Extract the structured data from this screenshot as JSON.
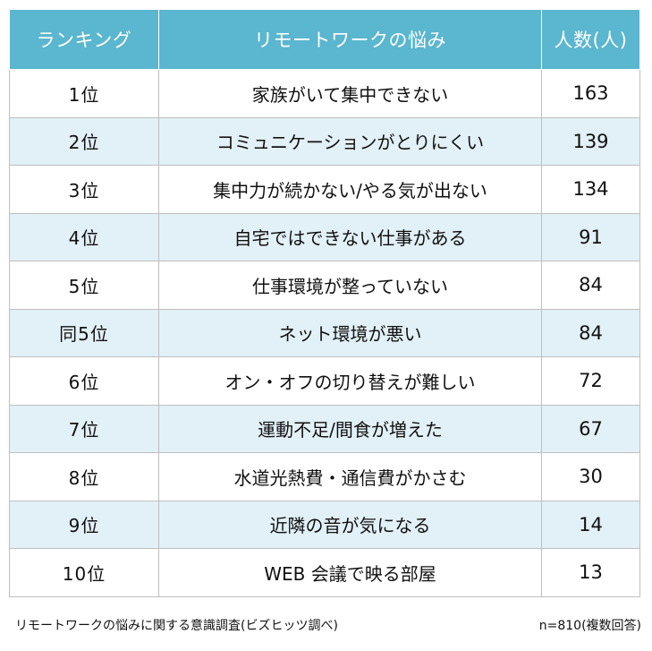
{
  "colors": {
    "header_bg": "#5bb6cf",
    "header_text": "#ffffff",
    "row_shade": "#e2f0f7",
    "border": "#bfbfbf"
  },
  "table": {
    "headers": {
      "rank": "ランキング",
      "concern": "リモートワークの悩み",
      "count": "人数(人)"
    },
    "rows": [
      {
        "rank": "1位",
        "concern": "家族がいて集中できない",
        "count": "163"
      },
      {
        "rank": "2位",
        "concern": "コミュニケーションがとりにくい",
        "count": "139"
      },
      {
        "rank": "3位",
        "concern": "集中力が続かない/やる気が出ない",
        "count": "134"
      },
      {
        "rank": "4位",
        "concern": "自宅ではできない仕事がある",
        "count": "91"
      },
      {
        "rank": "5位",
        "concern": "仕事環境が整っていない",
        "count": "84"
      },
      {
        "rank": "同5位",
        "concern": "ネット環境が悪い",
        "count": "84"
      },
      {
        "rank": "6位",
        "concern": "オン・オフの切り替えが難しい",
        "count": "72"
      },
      {
        "rank": "7位",
        "concern": "運動不足/間食が増えた",
        "count": "67"
      },
      {
        "rank": "8位",
        "concern": "水道光熱費・通信費がかさむ",
        "count": "30"
      },
      {
        "rank": "9位",
        "concern": "近隣の音が気になる",
        "count": "14"
      },
      {
        "rank": "10位",
        "concern": "WEB 会議で映る部屋",
        "count": "13"
      }
    ]
  },
  "footer": {
    "source": "リモートワークの悩みに関する意識調査(ビズヒッツ調べ)",
    "sample": "n=810(複数回答)"
  }
}
